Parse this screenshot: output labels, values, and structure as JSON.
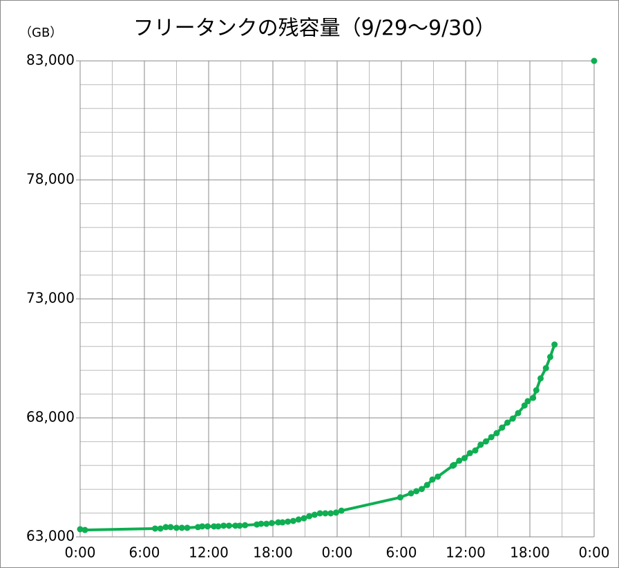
{
  "chart_data": {
    "type": "line",
    "title": "フリータンクの残容量（9/29～9/30）",
    "y_label": "（GB）",
    "x": [
      0,
      0.45,
      7.0,
      7.5,
      8.0,
      8.45,
      9.0,
      9.5,
      10.0,
      11.0,
      11.4,
      11.9,
      12.5,
      12.9,
      13.4,
      13.9,
      14.5,
      14.9,
      15.4,
      16.5,
      16.9,
      17.4,
      17.9,
      18.5,
      18.9,
      19.4,
      19.9,
      20.4,
      20.9,
      21.4,
      21.9,
      22.4,
      22.9,
      23.4,
      23.9,
      24.4,
      29.9,
      30.9,
      31.4,
      31.9,
      32.4,
      32.9,
      33.4,
      34.8,
      34.9,
      35.4,
      35.9,
      36.4,
      36.9,
      37.4,
      37.9,
      38.4,
      38.9,
      39.4,
      39.9,
      40.4,
      40.9,
      41.5,
      41.8,
      42.3,
      42.6,
      43.0,
      43.5,
      43.9,
      44.3,
      46,
      48
    ],
    "series": [
      {
        "color": "#0fae52",
        "values": [
          63320,
          63290,
          63350,
          63350,
          63410,
          63410,
          63380,
          63380,
          63380,
          63410,
          63440,
          63440,
          63440,
          63440,
          63470,
          63470,
          63470,
          63470,
          63490,
          63520,
          63550,
          63550,
          63580,
          63610,
          63610,
          63640,
          63670,
          63730,
          63780,
          63870,
          63930,
          63990,
          63990,
          63990,
          64020,
          64100,
          64660,
          64830,
          64920,
          65010,
          65180,
          65410,
          65530,
          65990,
          66020,
          66200,
          66310,
          66520,
          66630,
          66870,
          67010,
          67190,
          67360,
          67590,
          67800,
          67970,
          68200,
          68520,
          68700,
          68840,
          69160,
          69660,
          70090,
          70560,
          71080,
          null,
          83000
        ]
      }
    ],
    "xlim": [
      0,
      48
    ],
    "xticks": [
      {
        "value": 0,
        "label": "0:00"
      },
      {
        "value": 6,
        "label": "6:00"
      },
      {
        "value": 12,
        "label": "12:00"
      },
      {
        "value": 18,
        "label": "18:00"
      },
      {
        "value": 24,
        "label": "0:00"
      },
      {
        "value": 30,
        "label": "6:00"
      },
      {
        "value": 36,
        "label": "12:00"
      },
      {
        "value": 42,
        "label": "18:00"
      },
      {
        "value": 48,
        "label": "0:00"
      }
    ],
    "x_minor_ticks": [
      3,
      9,
      15,
      21,
      27,
      33,
      39,
      45
    ],
    "ylim": [
      63000,
      83000
    ],
    "yticks": [
      {
        "value": 63000,
        "label": "63,000"
      },
      {
        "value": 68000,
        "label": "68,000"
      },
      {
        "value": 73000,
        "label": "73,000"
      },
      {
        "value": 78000,
        "label": "78,000"
      },
      {
        "value": 83000,
        "label": "83,000"
      }
    ],
    "y_minor_ticks": [
      64000,
      65000,
      66000,
      67000,
      69000,
      70000,
      71000,
      72000,
      74000,
      75000,
      76000,
      77000,
      79000,
      80000,
      81000,
      82000
    ],
    "grid": true
  }
}
